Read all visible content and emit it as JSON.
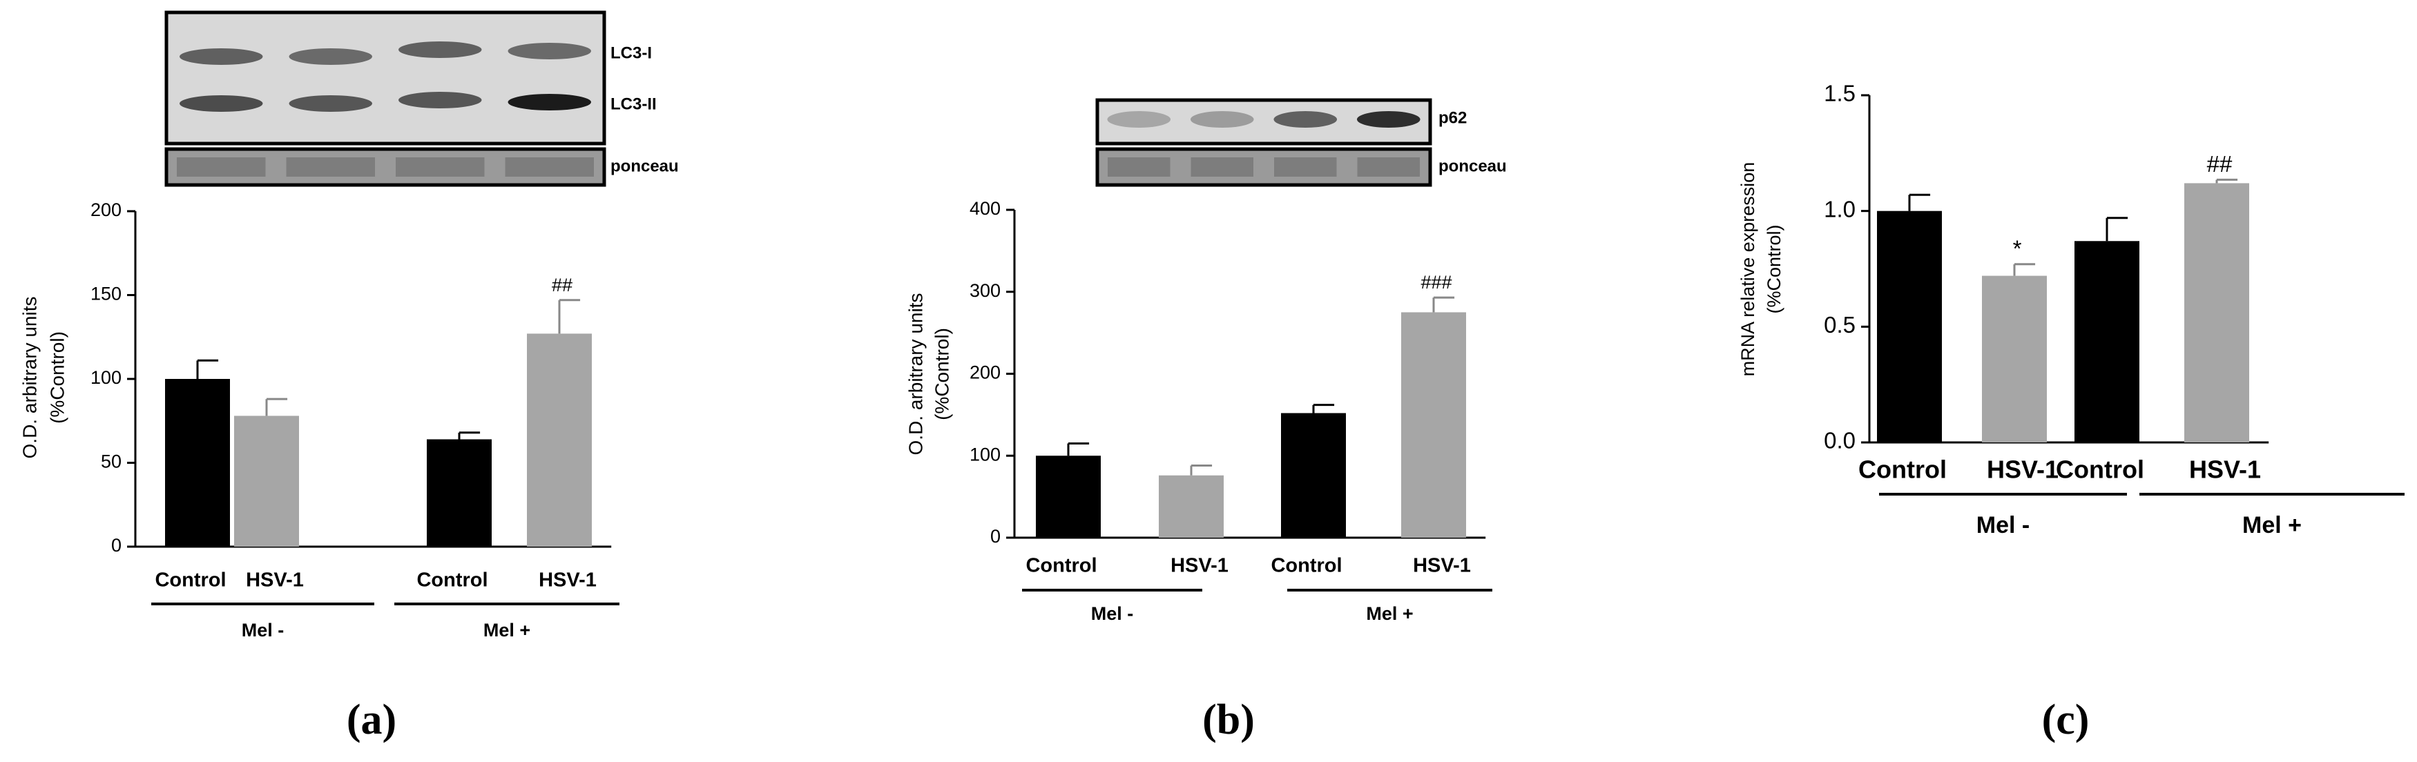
{
  "chart_data": [
    {
      "type": "bar",
      "panel": "(a)",
      "ylabel": [
        "O.D. arbitrary units",
        "(%Control)"
      ],
      "blot_labels": [
        "LC3-I",
        "LC3-II"
      ],
      "loading_label": "ponceau",
      "categories": [
        "Control",
        "HSV-1",
        "Control",
        "HSV-1"
      ],
      "groups": [
        "Mel -",
        "Mel +"
      ],
      "values": [
        100,
        78,
        64,
        127
      ],
      "errors": [
        11,
        10,
        4,
        20
      ],
      "annotations": [
        null,
        null,
        null,
        "##"
      ],
      "colors": [
        "#000000",
        "#a6a6a6",
        "#000000",
        "#a6a6a6"
      ],
      "ylim": [
        0,
        200
      ],
      "yticks": [
        0,
        50,
        100,
        150,
        200
      ]
    },
    {
      "type": "bar",
      "panel": "(b)",
      "ylabel": [
        "O.D. arbitrary units",
        "(%Control)"
      ],
      "blot_labels": [
        "p62"
      ],
      "loading_label": "ponceau",
      "categories": [
        "Control",
        "HSV-1",
        "Control",
        "HSV-1"
      ],
      "groups": [
        "Mel -",
        "Mel +"
      ],
      "values": [
        100,
        76,
        152,
        275
      ],
      "errors": [
        15,
        12,
        10,
        18
      ],
      "annotations": [
        null,
        null,
        null,
        "###"
      ],
      "colors": [
        "#000000",
        "#a6a6a6",
        "#000000",
        "#a6a6a6"
      ],
      "ylim": [
        0,
        400
      ],
      "yticks": [
        0,
        100,
        200,
        300,
        400
      ]
    },
    {
      "type": "bar",
      "panel": "(c)",
      "ylabel": [
        "mRNA relative expression",
        "(%Control)"
      ],
      "categories": [
        "Control",
        "HSV-1",
        "Control",
        "HSV-1"
      ],
      "groups": [
        "Mel -",
        "Mel +"
      ],
      "values": [
        1.0,
        0.72,
        0.87,
        1.12
      ],
      "errors": [
        0.07,
        0.05,
        0.1,
        0.015
      ],
      "annotations": [
        null,
        "*",
        null,
        "##"
      ],
      "colors": [
        "#000000",
        "#a6a6a6",
        "#000000",
        "#a6a6a6"
      ],
      "ylim": [
        0,
        1.5
      ],
      "yticks": [
        {
          "value": 0,
          "label": "0.0"
        },
        {
          "value": 0.5,
          "label": "0.5"
        },
        {
          "value": 1,
          "label": "1.0"
        },
        {
          "value": 1.5,
          "label": "1.5"
        }
      ]
    }
  ]
}
